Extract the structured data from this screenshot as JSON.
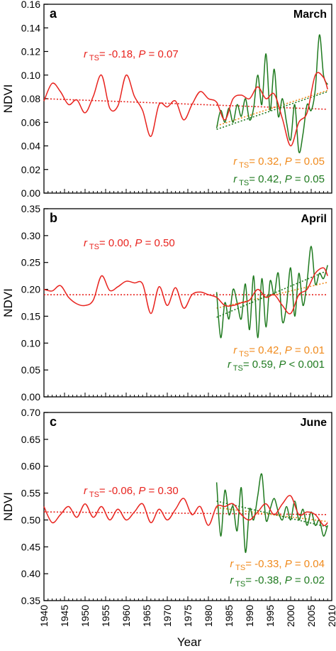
{
  "colors": {
    "red": "#e8231e",
    "green": "#1f7a1f",
    "orange": "#f08a1c",
    "axis": "#000000"
  },
  "chart_data": [
    {
      "type": "line",
      "panel_label": "a",
      "month": "March",
      "ylabel": "NDVI",
      "xlabel": "Year",
      "xlim": [
        1940,
        2010
      ],
      "ylim": [
        0.0,
        0.16
      ],
      "yticks": [
        "0.00",
        "0.02",
        "0.04",
        "0.06",
        "0.08",
        "0.10",
        "0.12",
        "0.14",
        "0.16"
      ],
      "xticks": [
        "1940",
        "1945",
        "1950",
        "1955",
        "1960",
        "1965",
        "1970",
        "1975",
        "1980",
        "1985",
        "1990",
        "1995",
        "2000",
        "2005",
        "2010"
      ],
      "series": [
        {
          "color": "red",
          "x": [
            1940,
            1942,
            1944,
            1946,
            1948,
            1950,
            1952,
            1954,
            1956,
            1958,
            1960,
            1962,
            1964,
            1966,
            1968,
            1970,
            1972,
            1974,
            1976,
            1978,
            1980,
            1982,
            1984,
            1986,
            1988,
            1990,
            1992,
            1994,
            1996,
            1998,
            2000,
            2002,
            2004,
            2006,
            2008,
            2009
          ],
          "y": [
            0.078,
            0.093,
            0.086,
            0.075,
            0.079,
            0.068,
            0.082,
            0.1,
            0.072,
            0.074,
            0.1,
            0.082,
            0.07,
            0.048,
            0.075,
            0.073,
            0.078,
            0.062,
            0.075,
            0.086,
            0.08,
            0.077,
            0.062,
            0.08,
            0.083,
            0.08,
            0.09,
            0.08,
            0.084,
            0.063,
            0.04,
            0.06,
            0.068,
            0.1,
            0.098,
            0.088
          ]
        },
        {
          "color": "green",
          "x": [
            1982,
            1983,
            1984,
            1985,
            1986,
            1987,
            1988,
            1989,
            1990,
            1991,
            1992,
            1993,
            1994,
            1995,
            1996,
            1997,
            1998,
            1999,
            2000,
            2001,
            2002,
            2003,
            2004,
            2005,
            2006,
            2007,
            2008,
            2009
          ],
          "y": [
            0.055,
            0.07,
            0.06,
            0.072,
            0.06,
            0.075,
            0.065,
            0.08,
            0.062,
            0.072,
            0.1,
            0.075,
            0.118,
            0.07,
            0.105,
            0.065,
            0.08,
            0.06,
            0.045,
            0.075,
            0.035,
            0.05,
            0.075,
            0.07,
            0.088,
            0.134,
            0.1,
            0.092
          ]
        }
      ],
      "trends": [
        {
          "color": "red",
          "x": [
            1940,
            2009
          ],
          "y": [
            0.08,
            0.071
          ]
        },
        {
          "color": "orange",
          "x": [
            1982,
            2009
          ],
          "y": [
            0.057,
            0.087
          ]
        },
        {
          "color": "green",
          "x": [
            1982,
            2009
          ],
          "y": [
            0.054,
            0.086
          ]
        }
      ],
      "stats": [
        {
          "color": "red",
          "r": "-0.18",
          "p": "P = 0.07",
          "align": "start"
        },
        {
          "color": "orange",
          "r": "0.32",
          "p": "P = 0.05",
          "align": "end"
        },
        {
          "color": "green",
          "r": "0.42",
          "p": "P = 0.05",
          "align": "end"
        }
      ]
    },
    {
      "type": "line",
      "panel_label": "b",
      "month": "April",
      "ylabel": "NDVI",
      "xlabel": "Year",
      "xlim": [
        1940,
        2010
      ],
      "ylim": [
        0.0,
        0.35
      ],
      "yticks": [
        "0.00",
        "0.05",
        "0.10",
        "0.15",
        "0.20",
        "0.25",
        "0.30",
        "0.35"
      ],
      "xticks": [
        "1940",
        "1945",
        "1950",
        "1955",
        "1960",
        "1965",
        "1970",
        "1975",
        "1980",
        "1985",
        "1990",
        "1995",
        "2000",
        "2005",
        "2010"
      ],
      "series": [
        {
          "color": "red",
          "x": [
            1940,
            1942,
            1944,
            1946,
            1948,
            1950,
            1952,
            1954,
            1956,
            1958,
            1960,
            1962,
            1964,
            1966,
            1968,
            1970,
            1972,
            1974,
            1976,
            1978,
            1980,
            1982,
            1984,
            1986,
            1988,
            1990,
            1992,
            1994,
            1996,
            1998,
            2000,
            2002,
            2004,
            2006,
            2008,
            2009
          ],
          "y": [
            0.2,
            0.197,
            0.207,
            0.185,
            0.173,
            0.17,
            0.18,
            0.225,
            0.198,
            0.205,
            0.215,
            0.212,
            0.21,
            0.155,
            0.205,
            0.17,
            0.203,
            0.165,
            0.19,
            0.195,
            0.19,
            0.185,
            0.17,
            0.17,
            0.175,
            0.18,
            0.2,
            0.185,
            0.19,
            0.17,
            0.155,
            0.19,
            0.2,
            0.23,
            0.24,
            0.225
          ]
        },
        {
          "color": "green",
          "x": [
            1982,
            1983,
            1984,
            1985,
            1986,
            1987,
            1988,
            1989,
            1990,
            1991,
            1992,
            1993,
            1994,
            1995,
            1996,
            1997,
            1998,
            1999,
            2000,
            2001,
            2002,
            2003,
            2004,
            2005,
            2006,
            2007,
            2008,
            2009
          ],
          "y": [
            0.195,
            0.11,
            0.175,
            0.145,
            0.2,
            0.175,
            0.145,
            0.21,
            0.125,
            0.225,
            0.11,
            0.22,
            0.13,
            0.215,
            0.19,
            0.23,
            0.14,
            0.17,
            0.24,
            0.15,
            0.23,
            0.17,
            0.215,
            0.28,
            0.21,
            0.23,
            0.22,
            0.245
          ]
        }
      ],
      "trends": [
        {
          "color": "red",
          "x": [
            1940,
            2009
          ],
          "y": [
            0.19,
            0.19
          ]
        },
        {
          "color": "orange",
          "x": [
            1982,
            2009
          ],
          "y": [
            0.165,
            0.213
          ]
        },
        {
          "color": "green",
          "x": [
            1982,
            2009
          ],
          "y": [
            0.148,
            0.235
          ]
        }
      ],
      "stats": [
        {
          "color": "red",
          "r": "0.00",
          "p": "P = 0.50",
          "align": "start"
        },
        {
          "color": "orange",
          "r": "0.42",
          "p": "P = 0.01",
          "align": "end"
        },
        {
          "color": "green",
          "r": "0.59",
          "p": "P < 0.001",
          "align": "end"
        }
      ]
    },
    {
      "type": "line",
      "panel_label": "c",
      "month": "June",
      "ylabel": "NDVI",
      "xlabel": "Year",
      "xlim": [
        1940,
        2010
      ],
      "ylim": [
        0.35,
        0.7
      ],
      "yticks": [
        "0.35",
        "0.40",
        "0.45",
        "0.50",
        "0.55",
        "0.60",
        "0.65",
        "0.70"
      ],
      "xticks": [
        "1940",
        "1945",
        "1950",
        "1955",
        "1960",
        "1965",
        "1970",
        "1975",
        "1980",
        "1985",
        "1990",
        "1995",
        "2000",
        "2005",
        "2010"
      ],
      "series": [
        {
          "color": "red",
          "x": [
            1940,
            1942,
            1944,
            1946,
            1948,
            1950,
            1952,
            1954,
            1956,
            1958,
            1960,
            1962,
            1964,
            1966,
            1968,
            1970,
            1972,
            1974,
            1976,
            1978,
            1980,
            1982,
            1984,
            1986,
            1988,
            1990,
            1992,
            1994,
            1996,
            1998,
            2000,
            2002,
            2004,
            2006,
            2008,
            2009
          ],
          "y": [
            0.525,
            0.495,
            0.51,
            0.525,
            0.505,
            0.53,
            0.505,
            0.525,
            0.5,
            0.52,
            0.5,
            0.515,
            0.53,
            0.495,
            0.52,
            0.5,
            0.52,
            0.54,
            0.51,
            0.525,
            0.49,
            0.525,
            0.525,
            0.53,
            0.51,
            0.5,
            0.515,
            0.53,
            0.51,
            0.53,
            0.545,
            0.51,
            0.515,
            0.51,
            0.49,
            0.495
          ]
        },
        {
          "color": "green",
          "x": [
            1982,
            1983,
            1984,
            1985,
            1986,
            1987,
            1988,
            1989,
            1990,
            1991,
            1992,
            1993,
            1994,
            1995,
            1996,
            1997,
            1998,
            1999,
            2000,
            2001,
            2002,
            2003,
            2004,
            2005,
            2006,
            2007,
            2008,
            2009
          ],
          "y": [
            0.57,
            0.47,
            0.555,
            0.51,
            0.525,
            0.48,
            0.56,
            0.44,
            0.52,
            0.5,
            0.545,
            0.585,
            0.5,
            0.52,
            0.54,
            0.515,
            0.5,
            0.525,
            0.5,
            0.535,
            0.5,
            0.52,
            0.49,
            0.515,
            0.49,
            0.5,
            0.47,
            0.49
          ]
        }
      ],
      "trends": [
        {
          "color": "red",
          "x": [
            1940,
            2009
          ],
          "y": [
            0.515,
            0.51
          ]
        },
        {
          "color": "orange",
          "x": [
            1982,
            2009
          ],
          "y": [
            0.523,
            0.497
          ]
        },
        {
          "color": "green",
          "x": [
            1982,
            2009
          ],
          "y": [
            0.535,
            0.487
          ]
        }
      ],
      "stats": [
        {
          "color": "red",
          "r": "-0.06",
          "p": "P = 0.30",
          "align": "start"
        },
        {
          "color": "orange",
          "r": "-0.33",
          "p": "P = 0.04",
          "align": "end"
        },
        {
          "color": "green",
          "r": "-0.38",
          "p": "P = 0.02",
          "align": "end"
        }
      ]
    }
  ],
  "stat_r_prefix": "r",
  "stat_r_sub": "TS",
  "stat_sep": "= ",
  "x_axis_title": "Year"
}
